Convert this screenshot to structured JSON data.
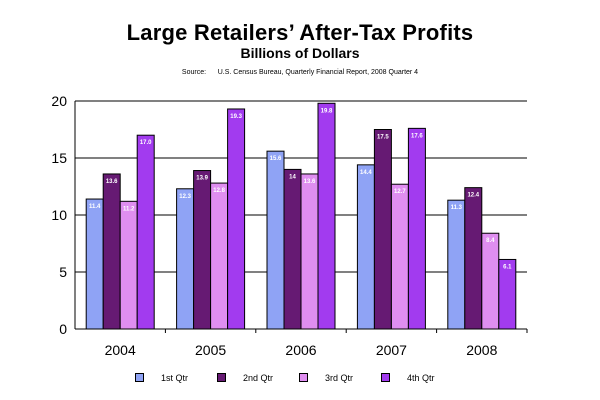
{
  "chart_data": {
    "type": "bar",
    "title": "Large Retailers’ After-Tax Profits",
    "subtitle": "Billions of Dollars",
    "source_label": "Source:",
    "source_text": "U.S. Census Bureau, Quarterly Financial Report, 2008 Quarter 4",
    "xlabel": "",
    "ylabel": "",
    "ylim": [
      0,
      20
    ],
    "yticks": [
      0,
      5,
      10,
      15,
      20
    ],
    "grid": true,
    "legend_position": "bottom",
    "categories": [
      "2004",
      "2005",
      "2006",
      "2007",
      "2008"
    ],
    "series": [
      {
        "name": "1st Qtr",
        "color": "#8FA3F5",
        "values": [
          11.4,
          12.3,
          15.6,
          14.4,
          11.3
        ],
        "labels": [
          "11.4",
          "12.3",
          "15.6",
          "14.4",
          "11.3"
        ]
      },
      {
        "name": "2nd Qtr",
        "color": "#661A73",
        "values": [
          13.6,
          13.9,
          14.0,
          17.5,
          12.4
        ],
        "labels": [
          "13.6",
          "13.9",
          "14",
          "17.5",
          "12.4"
        ]
      },
      {
        "name": "3rd Qtr",
        "color": "#DF8EF0",
        "values": [
          11.2,
          12.8,
          13.6,
          12.7,
          8.4
        ],
        "labels": [
          "11.2",
          "12.8",
          "13.6",
          "12.7",
          "8.4"
        ]
      },
      {
        "name": "4th Qtr",
        "color": "#A23BEF",
        "values": [
          17.0,
          19.3,
          19.8,
          17.6,
          6.1
        ],
        "labels": [
          "17.0",
          "19.3",
          "19.8",
          "17.6",
          "6.1"
        ]
      }
    ]
  }
}
